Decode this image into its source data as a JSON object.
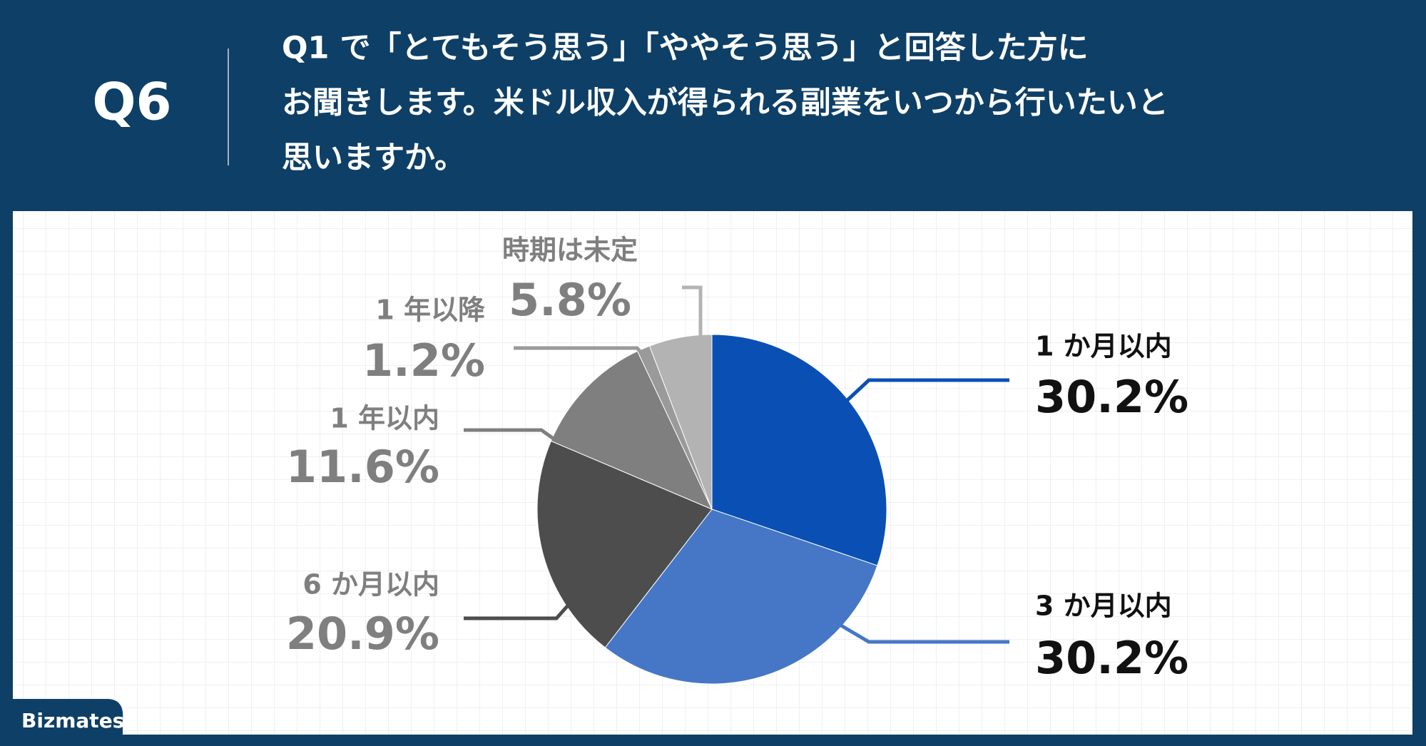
{
  "question_number": "Q6",
  "brand": "Bizmates",
  "chart_data": {
    "type": "pie",
    "title": [
      "Q1 で「とてもそう思う」「ややそう思う」と回答した方に",
      "お聞きします。米ドル収入が得られる副業をいつから行いたいと",
      "思いますか。"
    ],
    "categories": [
      "1 か月以内",
      "3 か月以内",
      "6 か月以内",
      "1 年以内",
      "1 年以降",
      "時期は未定"
    ],
    "values": [
      30.2,
      30.2,
      20.9,
      11.6,
      1.2,
      5.8
    ],
    "value_labels": [
      "30.2%",
      "30.2%",
      "20.9%",
      "11.6%",
      "1.2%",
      "5.8%"
    ],
    "colors": [
      "#0a50b4",
      "#4577c6",
      "#4d4d4d",
      "#7f7f7f",
      "#9a9a9a",
      "#b3b3b3"
    ]
  }
}
